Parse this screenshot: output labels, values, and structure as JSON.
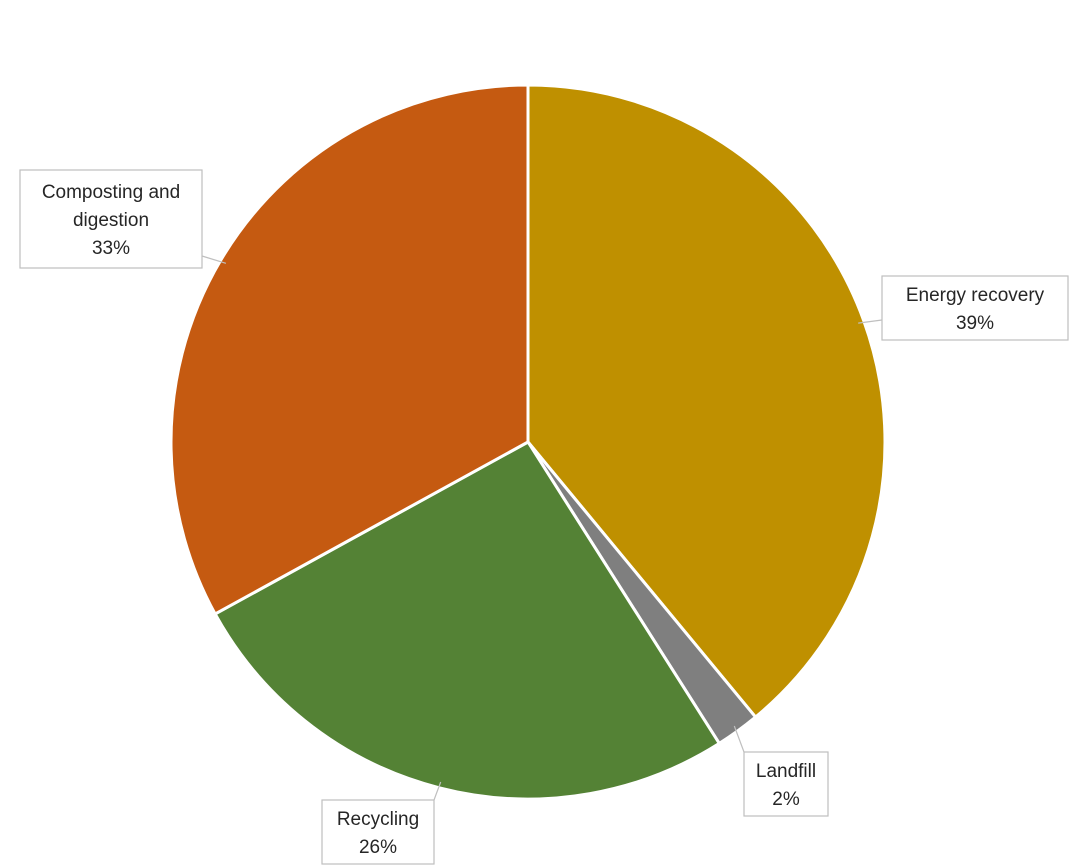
{
  "chart_data": {
    "type": "pie",
    "title": "",
    "slices": [
      {
        "label": "Energy recovery",
        "value": 39,
        "value_label": "39%",
        "color": "#BF9000"
      },
      {
        "label": "Landfill",
        "value": 2,
        "value_label": "2%",
        "color": "#7F7F7F"
      },
      {
        "label": "Recycling",
        "value": 26,
        "value_label": "26%",
        "color": "#548235"
      },
      {
        "label": "Composting and digestion",
        "value": 33,
        "value_label": "33%",
        "color": "#C55A11"
      }
    ],
    "legend": "none",
    "data_labels": "callouts"
  }
}
